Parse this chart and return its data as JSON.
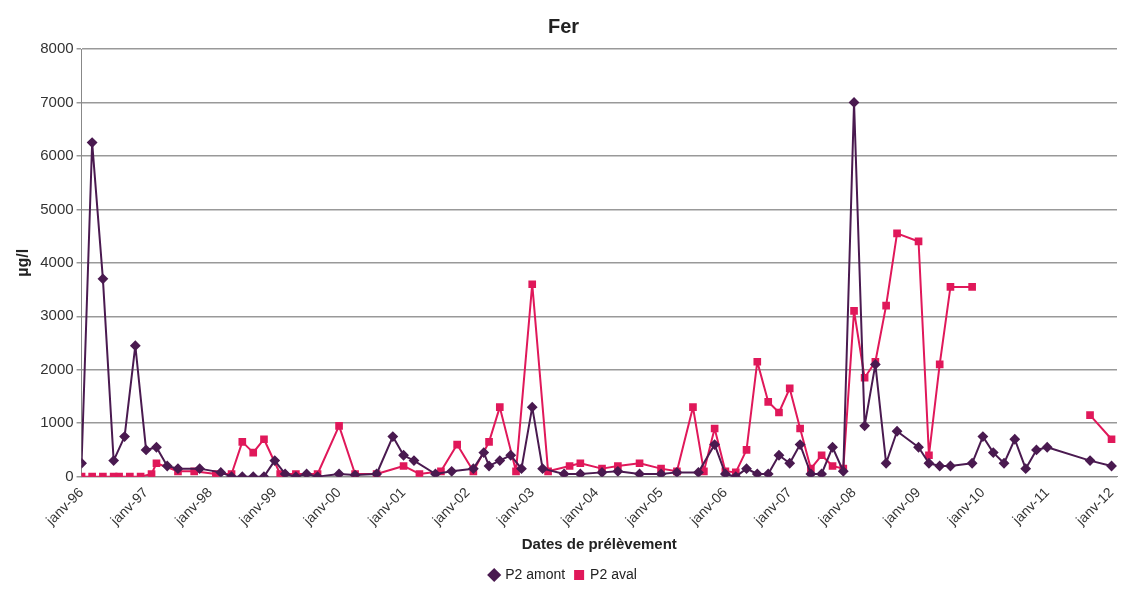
{
  "chart_data": {
    "type": "line",
    "title": "Fer",
    "xlabel": "Dates de prélèvement",
    "ylabel": "µg/l",
    "xlim": [
      "1996-01",
      "2012-02"
    ],
    "xticks": [
      {
        "value": "1996-01",
        "label": "janv-96"
      },
      {
        "value": "1997-01",
        "label": "janv-97"
      },
      {
        "value": "1998-01",
        "label": "janv-98"
      },
      {
        "value": "1999-01",
        "label": "janv-99"
      },
      {
        "value": "2000-01",
        "label": "janv-00"
      },
      {
        "value": "2001-01",
        "label": "janv-01"
      },
      {
        "value": "2002-01",
        "label": "janv-02"
      },
      {
        "value": "2003-01",
        "label": "janv-03"
      },
      {
        "value": "2004-01",
        "label": "janv-04"
      },
      {
        "value": "2005-01",
        "label": "janv-05"
      },
      {
        "value": "2006-01",
        "label": "janv-06"
      },
      {
        "value": "2007-01",
        "label": "janv-07"
      },
      {
        "value": "2008-01",
        "label": "janv-08"
      },
      {
        "value": "2009-01",
        "label": "janv-09"
      },
      {
        "value": "2010-01",
        "label": "janv-10"
      },
      {
        "value": "2011-01",
        "label": "janv-11"
      },
      {
        "value": "2012-01",
        "label": "janv-12"
      }
    ],
    "ylim": [
      0,
      8000
    ],
    "yticks": [
      0,
      1000,
      2000,
      3000,
      4000,
      5000,
      6000,
      7000,
      8000
    ],
    "grid": "y",
    "legend": "bottom",
    "series": [
      {
        "name": "P2 amont",
        "color": "#4a1a50",
        "marker": "diamond",
        "x": [
          "1996-01",
          "1996-03",
          "1996-05",
          "1996-07",
          "1996-09",
          "1996-11",
          "1997-01",
          "1997-03",
          "1997-05",
          "1997-07",
          "1997-11",
          "1998-03",
          "1998-05",
          "1998-07",
          "1998-09",
          "1998-11",
          "1999-01",
          "1999-03",
          "1999-05",
          "1999-07",
          "1999-09",
          "2000-01",
          "2000-04",
          "2000-08",
          "2000-11",
          "2001-01",
          "2001-03",
          "2001-07",
          "2001-10",
          "2002-02",
          "2002-04",
          "2002-05",
          "2002-07",
          "2002-09",
          "2002-11",
          "2003-01",
          "2003-03",
          "2003-07",
          "2003-10",
          "2004-02",
          "2004-05",
          "2004-09",
          "2005-01",
          "2005-04",
          "2005-08",
          "2005-11",
          "2006-01",
          "2006-03",
          "2006-05",
          "2006-07",
          "2006-09",
          "2006-11",
          "2007-01",
          "2007-03",
          "2007-05",
          "2007-07",
          "2007-09",
          "2007-11",
          "2008-01",
          "2008-03",
          "2008-05",
          "2008-07",
          "2008-09",
          "2009-01",
          "2009-03",
          "2009-05",
          "2009-07",
          "2009-11",
          "2010-01",
          "2010-03",
          "2010-05",
          "2010-07",
          "2010-09",
          "2010-11",
          "2011-01",
          "2011-09",
          "2012-01"
        ],
        "values": [
          250,
          6250,
          3700,
          300,
          750,
          2450,
          500,
          550,
          200,
          150,
          150,
          80,
          0,
          0,
          0,
          0,
          300,
          50,
          0,
          50,
          0,
          50,
          30,
          50,
          750,
          400,
          300,
          50,
          100,
          150,
          450,
          200,
          300,
          400,
          150,
          1300,
          150,
          50,
          50,
          80,
          100,
          50,
          50,
          80,
          80,
          600,
          50,
          0,
          150,
          50,
          50,
          400,
          250,
          600,
          50,
          50,
          550,
          100,
          7000,
          950,
          2100,
          250,
          850,
          550,
          250,
          200,
          200,
          250,
          750,
          450,
          250,
          700,
          150,
          500,
          550,
          300,
          200
        ]
      },
      {
        "name": "P2 aval",
        "color": "#e0185a",
        "marker": "square",
        "x": [
          "1996-01",
          "1996-03",
          "1996-05",
          "1996-07",
          "1996-08",
          "1996-10",
          "1996-12",
          "1997-02",
          "1997-03",
          "1997-07",
          "1997-10",
          "1998-02",
          "1998-05",
          "1998-07",
          "1998-09",
          "1998-11",
          "1999-02",
          "1999-05",
          "1999-09",
          "2000-01",
          "2000-04",
          "2000-08",
          "2001-01",
          "2001-04",
          "2001-08",
          "2001-11",
          "2002-02",
          "2002-05",
          "2002-07",
          "2002-10",
          "2003-01",
          "2003-04",
          "2003-08",
          "2003-10",
          "2004-02",
          "2004-05",
          "2004-09",
          "2005-01",
          "2005-04",
          "2005-07",
          "2005-09",
          "2005-11",
          "2006-01",
          "2006-03",
          "2006-05",
          "2006-07",
          "2006-09",
          "2006-11",
          "2007-01",
          "2007-03",
          "2007-05",
          "2007-07",
          "2007-09",
          "2007-11",
          "2008-01",
          "2008-03",
          "2008-05",
          "2008-07",
          "2008-09",
          "2009-01",
          "2009-03",
          "2009-05",
          "2009-07",
          "2009-11",
          "2010-11",
          "2011-09",
          "2012-01"
        ],
        "values": [
          0,
          0,
          0,
          0,
          0,
          0,
          0,
          50,
          250,
          100,
          100,
          50,
          50,
          650,
          450,
          700,
          50,
          50,
          50,
          950,
          50,
          50,
          200,
          50,
          100,
          600,
          100,
          650,
          1300,
          100,
          3600,
          100,
          200,
          250,
          150,
          200,
          250,
          150,
          100,
          1300,
          100,
          900,
          100,
          80,
          500,
          2150,
          1400,
          1200,
          1650,
          900,
          150,
          400,
          200,
          150,
          3100,
          1850,
          2150,
          3200,
          4550,
          4400,
          400,
          2100,
          3550,
          3550,
          null,
          1150,
          700
        ]
      }
    ]
  }
}
